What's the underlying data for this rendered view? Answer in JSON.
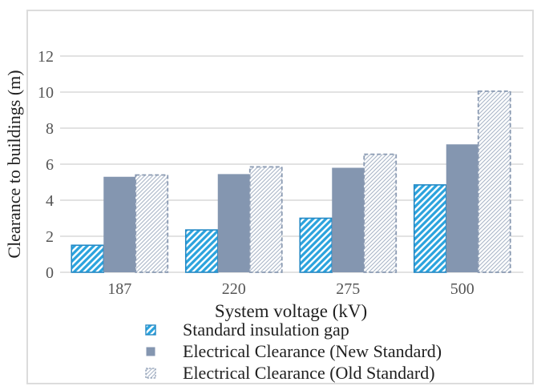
{
  "figure": {
    "background": "#ffffff",
    "border_color": "#dcdcdc"
  },
  "colors": {
    "grid": "#d9d9d9",
    "tick_text": "#555555",
    "label_text": "#1f1f1f",
    "series1_stripe": "#2ba3dd",
    "series1_border": "#2489c5",
    "series2_fill": "#8496b0",
    "series3_stripe": "#a9b5c7",
    "series3_border": "#8a9ab2"
  },
  "chart_data": {
    "type": "bar",
    "title": "",
    "xlabel": "System voltage (kV)",
    "ylabel": "Clearance to buildings (m)",
    "categories": [
      "187",
      "220",
      "275",
      "500"
    ],
    "series": [
      {
        "name": "Standard insulation gap",
        "style": "hatch-blue",
        "values": [
          1.5,
          2.35,
          3.0,
          4.85
        ]
      },
      {
        "name": "Electrical Clearance (New Standard)",
        "style": "solid",
        "values": [
          5.3,
          5.45,
          5.8,
          7.1
        ]
      },
      {
        "name": "Electrical Clearance (Old Standard)",
        "style": "hatch-gray-dashed",
        "values": [
          5.4,
          5.85,
          6.55,
          10.05
        ]
      }
    ],
    "ylim": [
      0,
      12
    ],
    "yticks": [
      0,
      2,
      4,
      6,
      8,
      10,
      12
    ],
    "grid": true,
    "legend_position": "bottom"
  }
}
